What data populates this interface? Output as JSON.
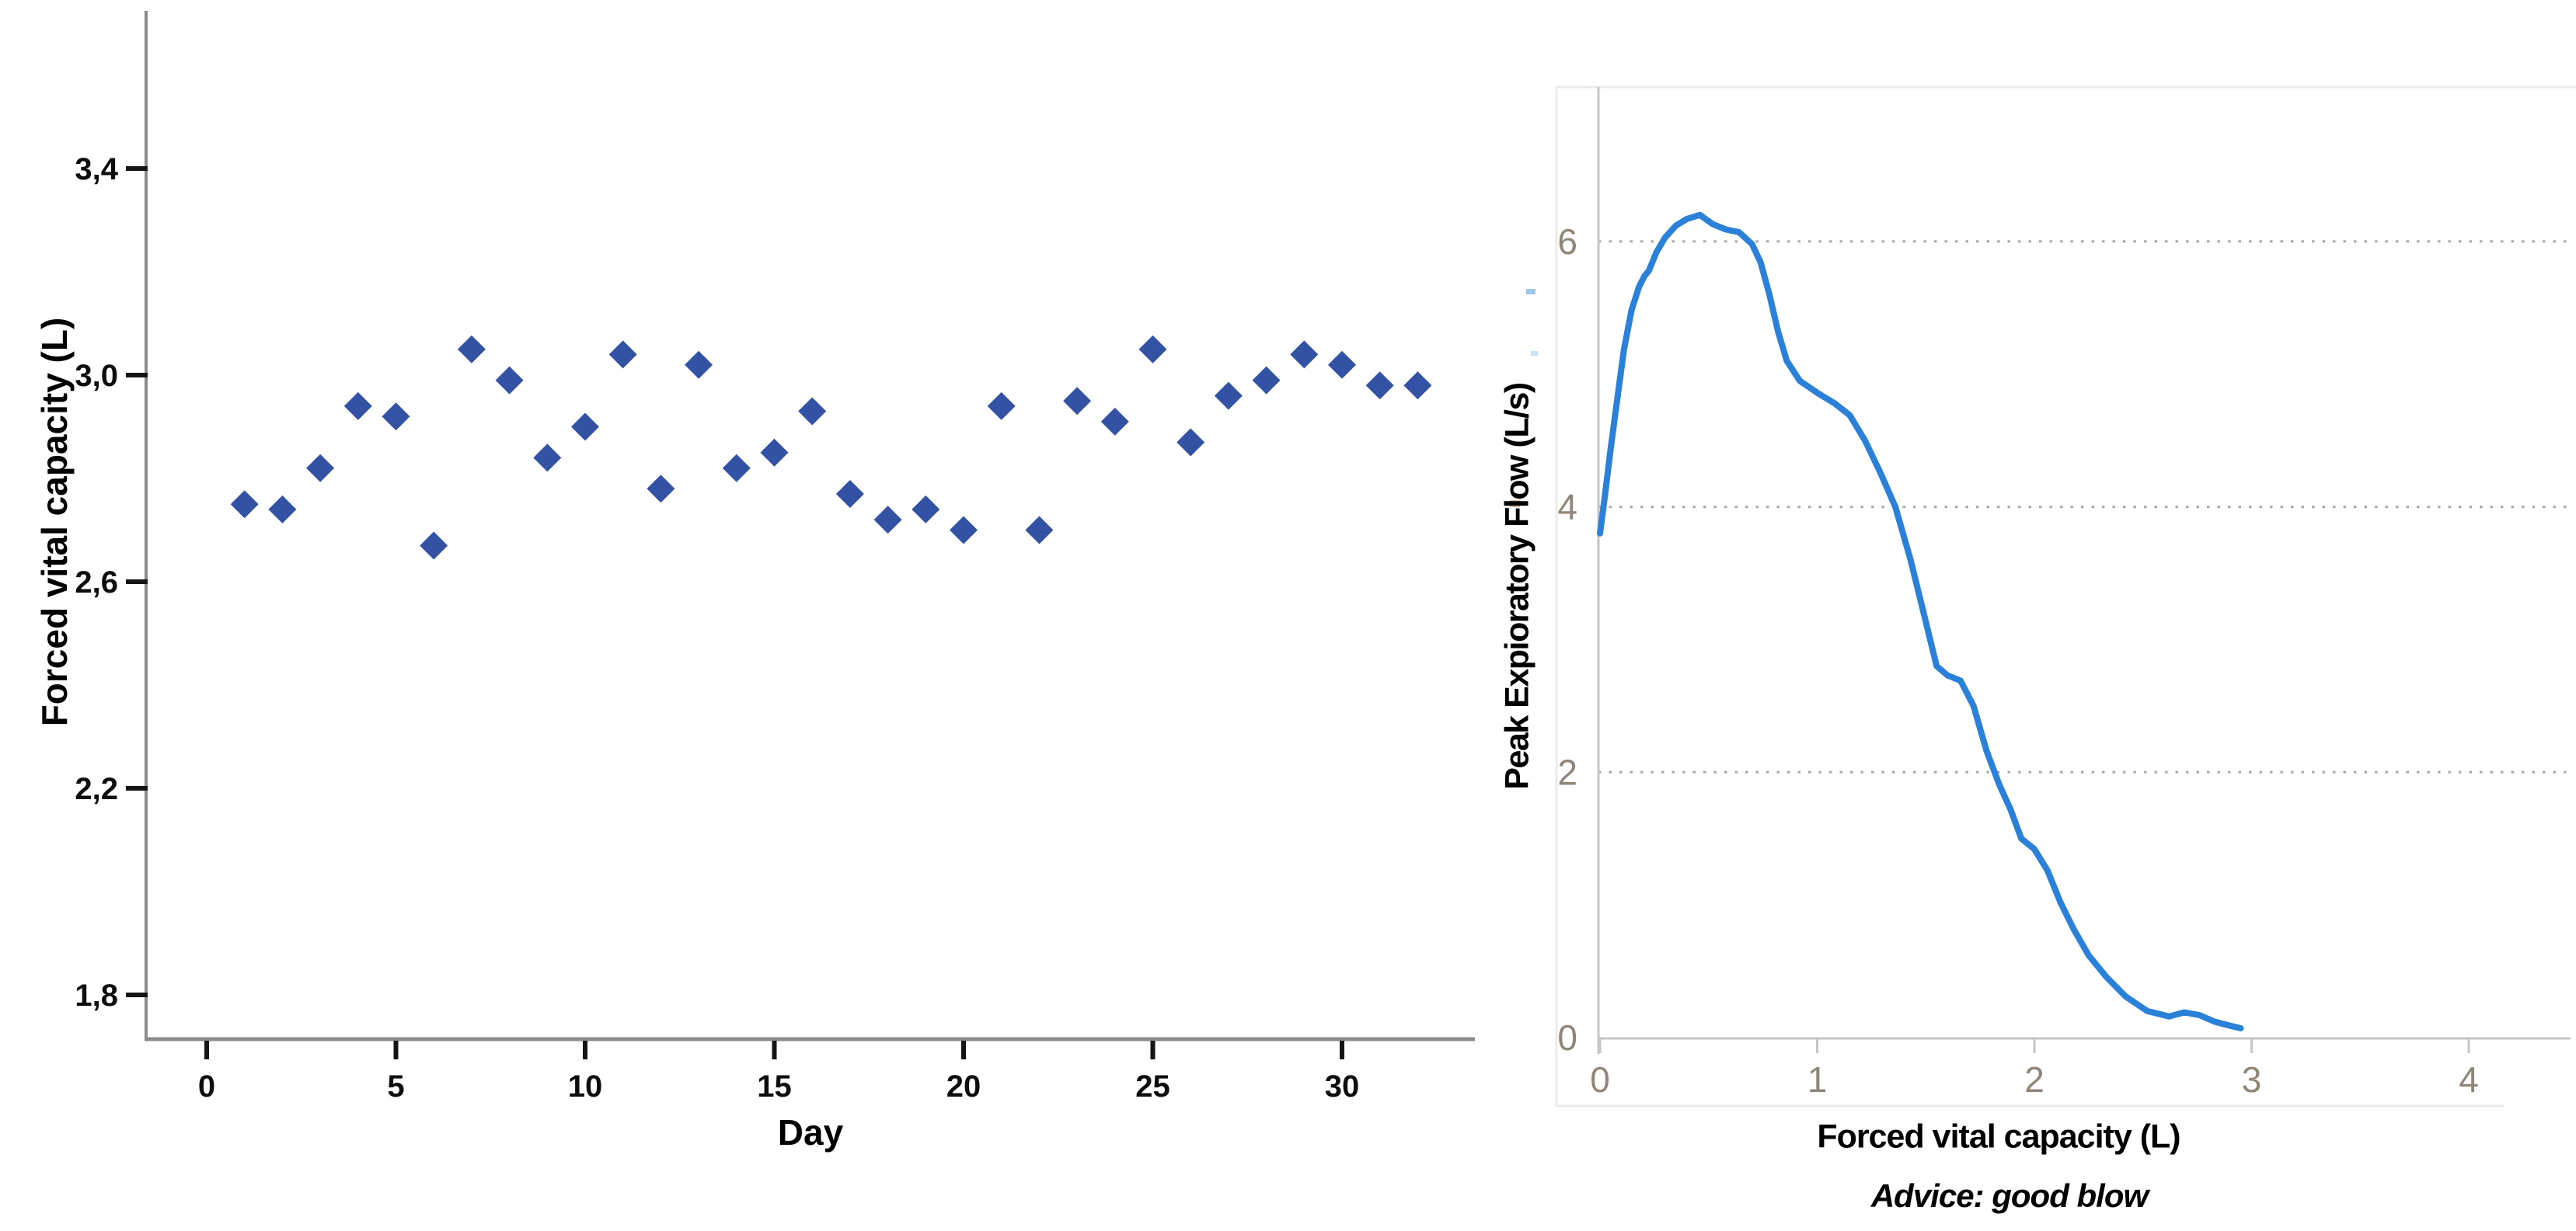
{
  "page": {
    "background": "#ffffff"
  },
  "colors": {
    "scatter_marker": "#3352a4",
    "flow_line": "#2b80d8",
    "left_axis": "#8c8c8c",
    "left_tick": "#151515",
    "left_text": "#0d0d0d",
    "right_axis": "#c6c6c6",
    "right_grid": "#a8a8a8",
    "right_tick_label": "#8e8678",
    "chart_frame": "#ebebeb"
  },
  "chart_data": [
    {
      "type": "scatter",
      "title": "",
      "xlabel": "Day",
      "ylabel": "Forced vital capacity (L)",
      "marker": "diamond",
      "marker_color": "#3352a4",
      "grid": false,
      "xlim": [
        -1.6,
        33.5
      ],
      "ylim": [
        1.71,
        3.71
      ],
      "x_ticks": {
        "values": [
          0,
          5,
          10,
          15,
          20,
          25,
          30
        ],
        "labels": [
          "0",
          "5",
          "10",
          "15",
          "20",
          "25",
          "30"
        ]
      },
      "y_ticks": {
        "values": [
          3.4,
          3.0,
          2.6,
          2.2,
          1.8
        ],
        "labels": [
          "3,4",
          "3,0",
          "2,6",
          "2,2",
          "1,8"
        ]
      },
      "x": [
        1,
        2,
        3,
        4,
        5,
        6,
        7,
        8,
        9,
        10,
        11,
        12,
        13,
        14,
        15,
        16,
        17,
        18,
        19,
        20,
        21,
        22,
        23,
        24,
        25,
        26,
        27,
        28,
        29,
        30,
        31,
        32
      ],
      "y": [
        2.75,
        2.74,
        2.82,
        2.94,
        2.92,
        2.67,
        3.05,
        2.99,
        2.84,
        2.9,
        3.04,
        2.78,
        3.02,
        2.82,
        2.85,
        2.93,
        2.77,
        2.72,
        2.74,
        2.7,
        2.94,
        2.7,
        2.95,
        2.91,
        3.05,
        2.87,
        2.96,
        2.99,
        3.04,
        3.02,
        2.98,
        2.98
      ]
    },
    {
      "type": "line",
      "title": "",
      "xlabel": "Forced vital capacity (L)",
      "ylabel": "Peak Expioratory Flow (L/s)",
      "caption": "Advice: good blow",
      "line_color": "#2b80d8",
      "legend": "none",
      "gridlines": {
        "y_values": [
          2,
          4,
          6
        ],
        "style": "dotted"
      },
      "xlim": [
        0,
        4.47
      ],
      "ylim": [
        0,
        7.16
      ],
      "x_ticks": {
        "values": [
          0,
          1,
          2,
          3,
          4
        ],
        "labels": [
          "0",
          "1",
          "2",
          "3",
          "4"
        ]
      },
      "y_ticks": {
        "values": [
          0,
          2,
          4,
          6
        ],
        "labels": [
          "0",
          "2",
          "4",
          "6"
        ]
      },
      "points": [
        [
          0.0,
          3.8
        ],
        [
          0.02,
          4.05
        ],
        [
          0.05,
          4.45
        ],
        [
          0.08,
          4.82
        ],
        [
          0.11,
          5.18
        ],
        [
          0.145,
          5.48
        ],
        [
          0.18,
          5.66
        ],
        [
          0.205,
          5.74
        ],
        [
          0.225,
          5.78
        ],
        [
          0.26,
          5.92
        ],
        [
          0.3,
          6.03
        ],
        [
          0.35,
          6.12
        ],
        [
          0.4,
          6.17
        ],
        [
          0.46,
          6.2
        ],
        [
          0.52,
          6.13
        ],
        [
          0.58,
          6.09
        ],
        [
          0.64,
          6.07
        ],
        [
          0.7,
          5.98
        ],
        [
          0.74,
          5.84
        ],
        [
          0.78,
          5.6
        ],
        [
          0.82,
          5.32
        ],
        [
          0.86,
          5.1
        ],
        [
          0.92,
          4.95
        ],
        [
          1.0,
          4.86
        ],
        [
          1.08,
          4.78
        ],
        [
          1.15,
          4.69
        ],
        [
          1.22,
          4.5
        ],
        [
          1.29,
          4.26
        ],
        [
          1.36,
          4.0
        ],
        [
          1.43,
          3.6
        ],
        [
          1.49,
          3.2
        ],
        [
          1.55,
          2.8
        ],
        [
          1.6,
          2.73
        ],
        [
          1.66,
          2.69
        ],
        [
          1.72,
          2.5
        ],
        [
          1.78,
          2.16
        ],
        [
          1.84,
          1.9
        ],
        [
          1.89,
          1.72
        ],
        [
          1.94,
          1.5
        ],
        [
          2.0,
          1.42
        ],
        [
          2.06,
          1.26
        ],
        [
          2.12,
          1.02
        ],
        [
          2.18,
          0.82
        ],
        [
          2.25,
          0.62
        ],
        [
          2.33,
          0.46
        ],
        [
          2.42,
          0.31
        ],
        [
          2.52,
          0.2
        ],
        [
          2.62,
          0.16
        ],
        [
          2.69,
          0.19
        ],
        [
          2.76,
          0.17
        ],
        [
          2.83,
          0.12
        ],
        [
          2.9,
          0.09
        ],
        [
          2.95,
          0.07
        ]
      ]
    }
  ]
}
